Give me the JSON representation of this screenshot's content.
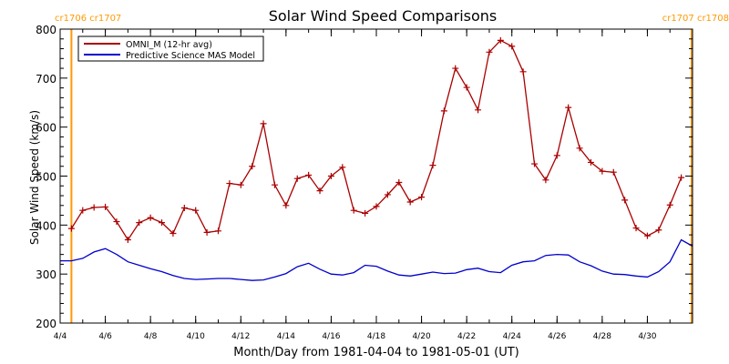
{
  "chart_data": {
    "type": "line",
    "title": "Solar Wind Speed Comparisons",
    "xlabel": "Month/Day from 1981-04-04 to 1981-05-01 (UT)",
    "ylabel": "Solar Wind Speed (km/s)",
    "xlim": [
      "1981-04-04T00:00",
      "1981-05-02T00:00"
    ],
    "ylim": [
      200,
      800
    ],
    "y_ticks": [
      200,
      300,
      400,
      500,
      600,
      700,
      800
    ],
    "x_ticks": [
      {
        "date": "1981-04-04",
        "label": "4/4"
      },
      {
        "date": "1981-04-06",
        "label": "4/6"
      },
      {
        "date": "1981-04-08",
        "label": "4/8"
      },
      {
        "date": "1981-04-10",
        "label": "4/10"
      },
      {
        "date": "1981-04-12",
        "label": "4/12"
      },
      {
        "date": "1981-04-14",
        "label": "4/14"
      },
      {
        "date": "1981-04-16",
        "label": "4/16"
      },
      {
        "date": "1981-04-18",
        "label": "4/18"
      },
      {
        "date": "1981-04-20",
        "label": "4/20"
      },
      {
        "date": "1981-04-22",
        "label": "4/22"
      },
      {
        "date": "1981-04-24",
        "label": "4/24"
      },
      {
        "date": "1981-04-26",
        "label": "4/26"
      },
      {
        "date": "1981-04-28",
        "label": "4/28"
      },
      {
        "date": "1981-04-30",
        "label": "4/30"
      }
    ],
    "grid": false,
    "legend_position": "top-left",
    "carrington_markers": [
      {
        "date": "1981-04-04T12:00",
        "left_label": "cr1706",
        "right_label": "cr1707",
        "label_side": "left"
      },
      {
        "date": "1981-05-02T00:00",
        "left_label": "cr1707",
        "right_label": "cr1708",
        "label_side": "right"
      }
    ],
    "series": [
      {
        "name": "OMNI_M (12-hr avg)",
        "color": "#aa0000",
        "marker": "plus",
        "x": [
          "1981-04-04T12:00",
          "1981-04-05T00:00",
          "1981-04-05T12:00",
          "1981-04-06T00:00",
          "1981-04-06T12:00",
          "1981-04-07T00:00",
          "1981-04-07T12:00",
          "1981-04-08T00:00",
          "1981-04-08T12:00",
          "1981-04-09T00:00",
          "1981-04-09T12:00",
          "1981-04-10T00:00",
          "1981-04-10T12:00",
          "1981-04-11T00:00",
          "1981-04-11T12:00",
          "1981-04-12T00:00",
          "1981-04-12T12:00",
          "1981-04-13T00:00",
          "1981-04-13T12:00",
          "1981-04-14T00:00",
          "1981-04-14T12:00",
          "1981-04-15T00:00",
          "1981-04-15T12:00",
          "1981-04-16T00:00",
          "1981-04-16T12:00",
          "1981-04-17T00:00",
          "1981-04-17T12:00",
          "1981-04-18T00:00",
          "1981-04-18T12:00",
          "1981-04-19T00:00",
          "1981-04-19T12:00",
          "1981-04-20T00:00",
          "1981-04-20T12:00",
          "1981-04-21T00:00",
          "1981-04-21T12:00",
          "1981-04-22T00:00",
          "1981-04-22T12:00",
          "1981-04-23T00:00",
          "1981-04-23T12:00",
          "1981-04-24T00:00",
          "1981-04-24T12:00",
          "1981-04-25T00:00",
          "1981-04-25T12:00",
          "1981-04-26T00:00",
          "1981-04-26T12:00",
          "1981-04-27T00:00",
          "1981-04-27T12:00",
          "1981-04-28T00:00",
          "1981-04-28T12:00",
          "1981-04-29T00:00",
          "1981-04-29T12:00",
          "1981-04-30T00:00",
          "1981-04-30T12:00",
          "1981-05-01T00:00",
          "1981-05-01T12:00"
        ],
        "values": [
          393,
          430,
          436,
          437,
          407,
          370,
          405,
          415,
          405,
          383,
          435,
          430,
          385,
          388,
          485,
          482,
          520,
          607,
          482,
          440,
          495,
          502,
          470,
          500,
          518,
          430,
          424,
          438,
          462,
          487,
          447,
          457,
          522,
          633,
          720,
          681,
          635,
          753,
          777,
          765,
          713,
          525,
          492,
          542,
          640,
          557,
          528,
          510,
          508,
          451,
          394,
          378,
          390,
          441,
          497
        ]
      },
      {
        "name": "Predictive Science MAS Model",
        "color": "#0000cc",
        "marker": "none",
        "x": [
          "1981-04-04T00:00",
          "1981-04-04T12:00",
          "1981-04-05T00:00",
          "1981-04-05T12:00",
          "1981-04-06T00:00",
          "1981-04-06T12:00",
          "1981-04-07T00:00",
          "1981-04-07T12:00",
          "1981-04-08T00:00",
          "1981-04-08T12:00",
          "1981-04-09T00:00",
          "1981-04-09T12:00",
          "1981-04-10T00:00",
          "1981-04-10T12:00",
          "1981-04-11T00:00",
          "1981-04-11T12:00",
          "1981-04-12T00:00",
          "1981-04-12T12:00",
          "1981-04-13T00:00",
          "1981-04-13T12:00",
          "1981-04-14T00:00",
          "1981-04-14T12:00",
          "1981-04-15T00:00",
          "1981-04-15T12:00",
          "1981-04-16T00:00",
          "1981-04-16T12:00",
          "1981-04-17T00:00",
          "1981-04-17T12:00",
          "1981-04-18T00:00",
          "1981-04-18T12:00",
          "1981-04-19T00:00",
          "1981-04-19T12:00",
          "1981-04-20T00:00",
          "1981-04-20T12:00",
          "1981-04-21T00:00",
          "1981-04-21T12:00",
          "1981-04-22T00:00",
          "1981-04-22T12:00",
          "1981-04-23T00:00",
          "1981-04-23T12:00",
          "1981-04-24T00:00",
          "1981-04-24T12:00",
          "1981-04-25T00:00",
          "1981-04-25T12:00",
          "1981-04-26T00:00",
          "1981-04-26T12:00",
          "1981-04-27T00:00",
          "1981-04-27T12:00",
          "1981-04-28T00:00",
          "1981-04-28T12:00",
          "1981-04-29T00:00",
          "1981-04-29T12:00",
          "1981-04-30T00:00",
          "1981-04-30T12:00",
          "1981-05-01T00:00",
          "1981-05-01T12:00",
          "1981-05-02T00:00"
        ],
        "values": [
          327,
          327,
          332,
          345,
          352,
          340,
          325,
          318,
          311,
          305,
          297,
          291,
          289,
          290,
          291,
          291,
          289,
          287,
          288,
          294,
          301,
          315,
          322,
          310,
          300,
          298,
          303,
          318,
          316,
          306,
          298,
          296,
          300,
          304,
          301,
          302,
          309,
          312,
          305,
          303,
          318,
          325,
          327,
          338,
          340,
          339,
          325,
          317,
          306,
          300,
          299,
          296,
          294,
          305,
          325,
          370,
          357
        ]
      }
    ]
  }
}
